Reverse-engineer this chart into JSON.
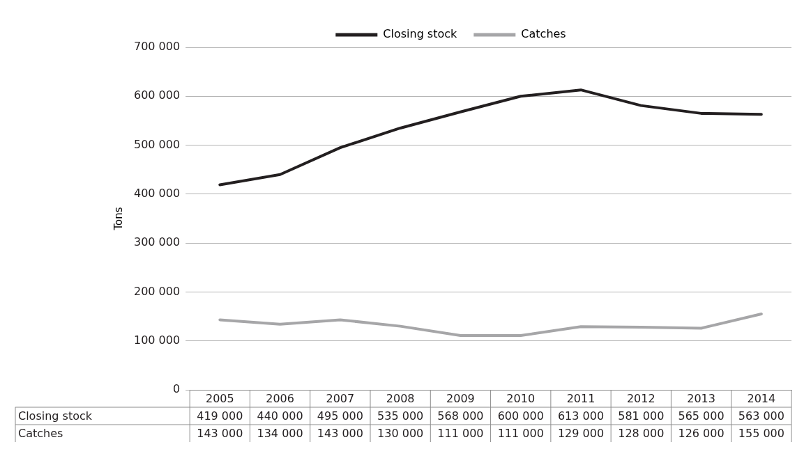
{
  "chart_data": {
    "type": "line",
    "ylabel": "Tons",
    "categories": [
      "2005",
      "2006",
      "2007",
      "2008",
      "2009",
      "2010",
      "2011",
      "2012",
      "2013",
      "2014"
    ],
    "series": [
      {
        "name": "Closing stock",
        "color": "#231f20",
        "values": [
          419000,
          440000,
          495000,
          535000,
          568000,
          600000,
          613000,
          581000,
          565000,
          563000
        ],
        "value_labels": [
          "419 000",
          "440 000",
          "495 000",
          "535 000",
          "568 000",
          "600 000",
          "613 000",
          "581 000",
          "565 000",
          "563 000"
        ]
      },
      {
        "name": "Catches",
        "color": "#a6a6a8",
        "values": [
          143000,
          134000,
          143000,
          130000,
          111000,
          111000,
          129000,
          128000,
          126000,
          155000
        ],
        "value_labels": [
          "143 000",
          "134 000",
          "143 000",
          "130 000",
          "111 000",
          "111 000",
          "129 000",
          "128 000",
          "126 000",
          "155 000"
        ]
      }
    ],
    "ylim": [
      0,
      700000
    ],
    "yticks": [
      {
        "value": 0,
        "label": "0"
      },
      {
        "value": 100000,
        "label": "100 000"
      },
      {
        "value": 200000,
        "label": "200 000"
      },
      {
        "value": 300000,
        "label": "300 000"
      },
      {
        "value": 400000,
        "label": "400 000"
      },
      {
        "value": 500000,
        "label": "500 000"
      },
      {
        "value": 600000,
        "label": "600 000"
      },
      {
        "value": 700000,
        "label": "700 000"
      }
    ],
    "grid": "y",
    "legend": "top",
    "marker": "none",
    "line_style": "solid"
  }
}
